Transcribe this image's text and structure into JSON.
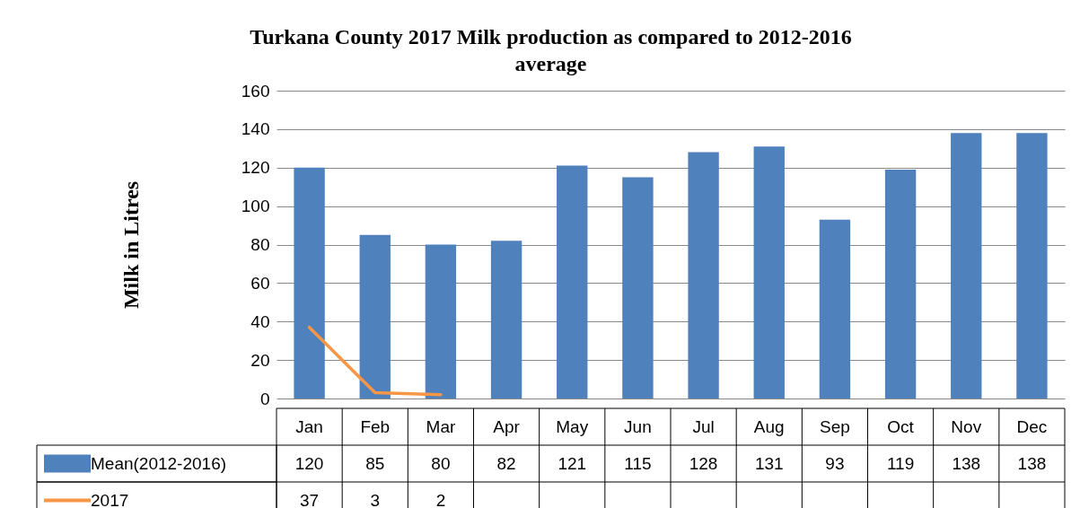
{
  "chart_data": {
    "type": "bar",
    "title": "Turkana County 2017 Milk production as compared to 2012-2016 average",
    "ylabel": "Milk in Litres",
    "categories": [
      "Jan",
      "Feb",
      "Mar",
      "Apr",
      "May",
      "Jun",
      "Jul",
      "Aug",
      "Sep",
      "Oct",
      "Nov",
      "Dec"
    ],
    "series": [
      {
        "name": "Mean(2012-2016)",
        "color": "#4f81bd",
        "values": [
          120,
          85,
          80,
          82,
          121,
          115,
          128,
          131,
          93,
          119,
          138,
          138
        ]
      },
      {
        "name": "2017",
        "type": "line",
        "color": "#f79646",
        "values": [
          37,
          3,
          2,
          null,
          null,
          null,
          null,
          null,
          null,
          null,
          null,
          null
        ]
      }
    ],
    "ylim": [
      0,
      160
    ],
    "yticks": [
      0,
      20,
      40,
      60,
      80,
      100,
      120,
      140,
      160
    ],
    "grid": "y",
    "legend": "bottom left",
    "data_labels": true
  }
}
